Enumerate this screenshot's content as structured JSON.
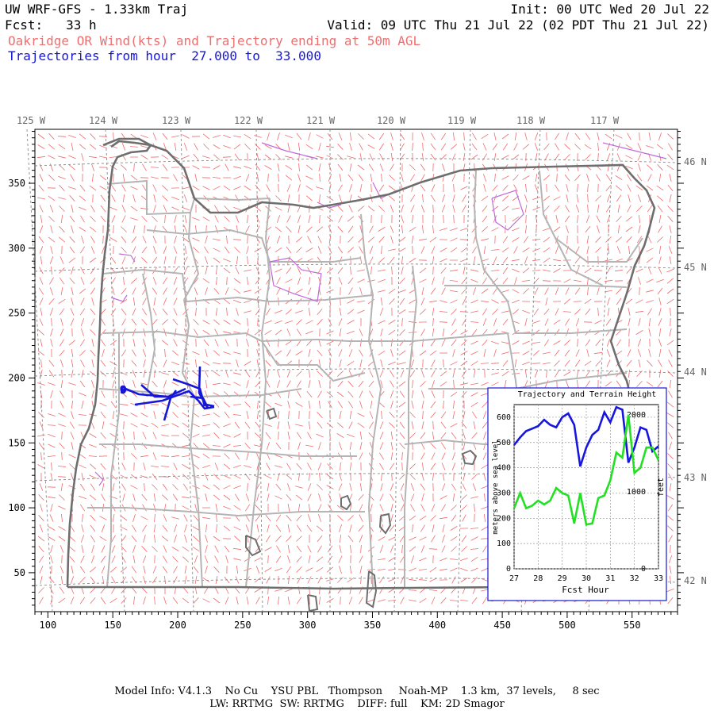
{
  "header": {
    "title": "UW WRF-GFS - 1.33km Traj",
    "init": "Init: 00 UTC Wed 20 Jul 22",
    "fcst": "Fcst:   33 h",
    "valid": "Valid: 09 UTC Thu 21 Jul 22 (02 PDT Thu 21 Jul 22)",
    "wind_line": "Oakridge OR Wind(kts) and Trajectory ending at 50m AGL",
    "traj_line": "Trajectories from hour  27.000 to  33.000"
  },
  "map": {
    "top_lon_labels": [
      "125 W",
      "124 W",
      "123 W",
      "122 W",
      "121 W",
      "120 W",
      "119 W",
      "118 W",
      "117 W"
    ],
    "right_lat_labels": [
      "46 N",
      "45 N",
      "44 N",
      "43 N",
      "42 N"
    ],
    "x_ticks": [
      "100",
      "150",
      "200",
      "250",
      "300",
      "350",
      "400",
      "450",
      "500",
      "550"
    ],
    "y_ticks": [
      "350",
      "300",
      "250",
      "200",
      "150",
      "100",
      "50"
    ],
    "trajectory_marker": "9",
    "colors": {
      "wind": "#f06a6a",
      "county": "#b4b4b4",
      "state": "#6e6e6e",
      "water": "#c06ad8",
      "trajectory": "#1616d8",
      "gridline": "#888888"
    }
  },
  "inset": {
    "title": "Trajectory and Terrain Height",
    "ylabel_left": "meters above sea level",
    "ylabel_right": "feet",
    "xlabel": "Fcst Hour",
    "x_ticks": [
      "27",
      "28",
      "29",
      "30",
      "31",
      "32",
      "33"
    ],
    "y_left_ticks": [
      "0",
      "100",
      "200",
      "300",
      "400",
      "500",
      "600"
    ],
    "y_right_ticks": [
      "0",
      "1000",
      "2000"
    ]
  },
  "chart_data": {
    "type": "line",
    "title": "Trajectory and Terrain Height",
    "xlabel": "Fcst Hour",
    "ylabel": "meters above sea level",
    "xlim": [
      27,
      33
    ],
    "ylim": [
      0,
      650
    ],
    "x": [
      27.0,
      27.25,
      27.5,
      27.75,
      28.0,
      28.25,
      28.5,
      28.75,
      29.0,
      29.25,
      29.5,
      29.75,
      30.0,
      30.25,
      30.5,
      30.75,
      31.0,
      31.25,
      31.5,
      31.75,
      32.0,
      32.25,
      32.5,
      32.75,
      33.0
    ],
    "series": [
      {
        "color": "#1616e0",
        "values": [
          490,
          520,
          545,
          555,
          565,
          590,
          570,
          560,
          600,
          615,
          570,
          405,
          480,
          530,
          550,
          620,
          580,
          640,
          630,
          420,
          480,
          560,
          550,
          465,
          485
        ]
      },
      {
        "color": "#22e022",
        "values": [
          240,
          300,
          240,
          250,
          270,
          255,
          270,
          320,
          300,
          290,
          180,
          300,
          175,
          180,
          280,
          290,
          350,
          460,
          440,
          610,
          380,
          400,
          480,
          480,
          430
        ]
      }
    ]
  },
  "footer": {
    "line1": "Model Info: V4.1.3    No Cu    YSU PBL   Thompson     Noah-MP    1.3 km,  37 levels,     8 sec",
    "line2": "LW: RRTMG  SW: RRTMG    DIFF: full    KM: 2D Smagor"
  }
}
